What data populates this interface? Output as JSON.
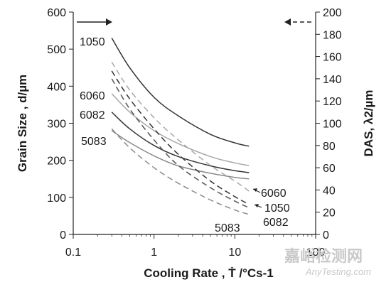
{
  "chart_data": {
    "type": "line",
    "x_scale": "log",
    "xlim": [
      0.1,
      100
    ],
    "xlabel": "Cooling Rate , Ṫ /°Cs-1",
    "x_ticks": [
      "0.1",
      "1",
      "10",
      "100"
    ],
    "left_axis": {
      "label": "Grain Size , d/µm",
      "ylim": [
        0,
        600
      ],
      "ticks": [
        "0",
        "100",
        "200",
        "300",
        "400",
        "500",
        "600"
      ]
    },
    "right_axis": {
      "label": "DAS, λ2/µm",
      "ylim": [
        0,
        200
      ],
      "ticks": [
        "0",
        "20",
        "40",
        "60",
        "80",
        "100",
        "120",
        "140",
        "160",
        "180",
        "200"
      ]
    },
    "grid": false,
    "legend": "none",
    "series": [
      {
        "name": "1050",
        "axis": "left",
        "style": "solid",
        "color": "#333333",
        "x": [
          0.3,
          0.5,
          1,
          2,
          5,
          10,
          15
        ],
        "y": [
          530,
          450,
          370,
          320,
          270,
          247,
          238
        ]
      },
      {
        "name": "6060",
        "axis": "left",
        "style": "solid",
        "color": "#a8a8a8",
        "x": [
          0.3,
          0.5,
          1,
          2,
          5,
          10,
          15
        ],
        "y": [
          380,
          330,
          280,
          245,
          210,
          193,
          186
        ]
      },
      {
        "name": "6082",
        "axis": "left",
        "style": "solid",
        "color": "#333333",
        "x": [
          0.3,
          0.5,
          1,
          2,
          5,
          10,
          15
        ],
        "y": [
          330,
          285,
          240,
          210,
          185,
          172,
          167
        ]
      },
      {
        "name": "5083",
        "axis": "left",
        "style": "solid",
        "color": "#8a8a8a",
        "x": [
          0.3,
          0.5,
          1,
          2,
          5,
          10,
          15
        ],
        "y": [
          280,
          248,
          212,
          185,
          165,
          154,
          150
        ]
      },
      {
        "name": "6060",
        "axis": "right",
        "style": "dashed",
        "color": "#a8a8a8",
        "x": [
          0.3,
          0.5,
          1,
          2,
          5,
          10,
          15
        ],
        "y": [
          155,
          130,
          105,
          85,
          62,
          48,
          39
        ]
      },
      {
        "name": "1050",
        "axis": "right",
        "style": "dashed",
        "color": "#333333",
        "x": [
          0.3,
          0.5,
          1,
          2,
          5,
          10,
          15
        ],
        "y": [
          147,
          122,
          95,
          72,
          48,
          34,
          27
        ]
      },
      {
        "name": "6082",
        "axis": "right",
        "style": "dashed",
        "color": "#555555",
        "x": [
          0.3,
          0.5,
          1,
          2,
          5,
          10,
          15
        ],
        "y": [
          140,
          113,
          85,
          62,
          42,
          30,
          24
        ]
      },
      {
        "name": "5083",
        "axis": "right",
        "style": "dashed",
        "color": "#8a8a8a",
        "x": [
          0.3,
          0.5,
          1,
          2,
          5,
          10,
          15
        ],
        "y": [
          95,
          78,
          60,
          46,
          31,
          22,
          18
        ]
      }
    ],
    "left_labels": [
      "1050",
      "6060",
      "6082",
      "5083"
    ],
    "right_labels": [
      "6060",
      "1050",
      "6082",
      "5083"
    ]
  },
  "watermark": {
    "main": "嘉峪检测网",
    "sub": "AnyTesting.com"
  }
}
